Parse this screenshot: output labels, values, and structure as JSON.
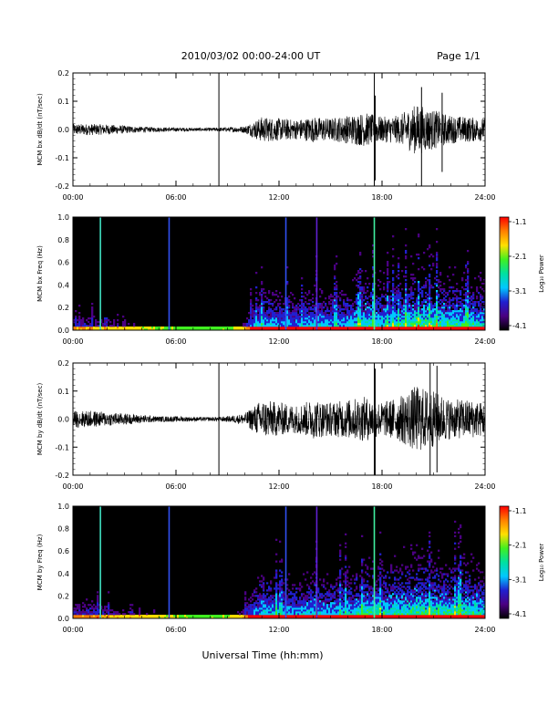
{
  "header": {
    "title": "2010/03/02  00:00-24:00 UT",
    "page": "Page 1/1"
  },
  "footer": {
    "xlabel": "Universal Time (hh:mm)"
  },
  "colorbar": {
    "label": "Log₁₀ Power",
    "ticks": [
      "-1.1",
      "-2.1",
      "-3.1",
      "-4.1"
    ],
    "stops": [
      "#000000",
      "#4b0082",
      "#2020d0",
      "#00c8ff",
      "#00e0a0",
      "#40f020",
      "#ffe000",
      "#ff8000",
      "#ff0000"
    ]
  },
  "chart_data": [
    {
      "type": "line",
      "title": "",
      "ylabel": "MCM bx dB/dt (nT/sec)",
      "xlabel": "",
      "xlim": [
        0,
        24
      ],
      "ylim": [
        -0.2,
        0.2
      ],
      "xticks": [
        "00:00",
        "06:00",
        "12:00",
        "18:00",
        "24:00"
      ],
      "yticks": [
        "0.2",
        "0.1",
        "0.0",
        "-0.1",
        "-0.2"
      ],
      "markers_h": [
        8.5,
        17.55
      ],
      "envelope": {
        "hours": [
          0,
          1,
          2,
          3,
          4,
          5,
          6,
          7,
          8,
          9,
          10,
          11,
          12,
          13,
          14,
          15,
          16,
          17,
          18,
          19,
          20,
          21,
          22,
          23,
          24
        ],
        "amplitude": [
          0.02,
          0.02,
          0.018,
          0.014,
          0.01,
          0.008,
          0.007,
          0.006,
          0.006,
          0.008,
          0.012,
          0.045,
          0.04,
          0.035,
          0.045,
          0.04,
          0.05,
          0.06,
          0.045,
          0.05,
          0.09,
          0.07,
          0.05,
          0.045,
          0.04
        ]
      },
      "spikes": [
        {
          "t": 17.6,
          "lo": -0.18,
          "hi": 0.12
        },
        {
          "t": 20.3,
          "lo": -0.2,
          "hi": 0.15
        },
        {
          "t": 21.5,
          "lo": -0.15,
          "hi": 0.13
        }
      ]
    },
    {
      "type": "heatmap",
      "title": "",
      "ylabel": "MCM bx Freq (Hz)",
      "xlabel": "",
      "xlim": [
        0,
        24
      ],
      "ylim": [
        0.0,
        1.0
      ],
      "xticks": [
        "00:00",
        "06:00",
        "12:00",
        "18:00",
        "24:00"
      ],
      "yticks": [
        "1.0",
        "0.8",
        "0.6",
        "0.4",
        "0.2",
        "0.0"
      ],
      "zlim": [
        -4.1,
        -1.1
      ],
      "activity": {
        "hours": [
          0,
          1,
          2,
          3,
          4,
          5,
          6,
          7,
          8,
          9,
          10,
          11,
          12,
          13,
          14,
          15,
          16,
          17,
          18,
          19,
          20,
          21,
          22,
          23,
          24
        ],
        "level": [
          0.25,
          0.25,
          0.22,
          0.18,
          0.15,
          0.12,
          0.1,
          0.08,
          0.08,
          0.1,
          0.2,
          0.6,
          0.55,
          0.5,
          0.6,
          0.55,
          0.6,
          0.8,
          0.7,
          0.75,
          0.9,
          0.85,
          0.8,
          0.75,
          0.7
        ]
      },
      "vertical_lines": [
        {
          "t": 1.6,
          "color": "#40e0c0"
        },
        {
          "t": 5.6,
          "color": "#3050f0"
        },
        {
          "t": 12.4,
          "color": "#3050f0"
        },
        {
          "t": 14.2,
          "color": "#6020d0"
        },
        {
          "t": 17.55,
          "color": "#40f0a0"
        }
      ]
    },
    {
      "type": "line",
      "title": "",
      "ylabel": "MCM by dB/dt (nT/sec)",
      "xlabel": "",
      "xlim": [
        0,
        24
      ],
      "ylim": [
        -0.2,
        0.2
      ],
      "xticks": [
        "00:00",
        "06:00",
        "12:00",
        "18:00",
        "24:00"
      ],
      "yticks": [
        "0.2",
        "0.1",
        "0.0",
        "-0.1",
        "-0.2"
      ],
      "markers_h": [
        8.5,
        17.55
      ],
      "envelope": {
        "hours": [
          0,
          1,
          2,
          3,
          4,
          5,
          6,
          7,
          8,
          9,
          10,
          11,
          12,
          13,
          14,
          15,
          16,
          17,
          18,
          19,
          20,
          21,
          22,
          23,
          24
        ],
        "amplitude": [
          0.03,
          0.03,
          0.025,
          0.02,
          0.015,
          0.01,
          0.01,
          0.008,
          0.007,
          0.01,
          0.02,
          0.07,
          0.06,
          0.05,
          0.07,
          0.06,
          0.07,
          0.08,
          0.06,
          0.08,
          0.12,
          0.1,
          0.07,
          0.07,
          0.06
        ]
      },
      "spikes": [
        {
          "t": 17.6,
          "lo": -0.2,
          "hi": 0.18
        },
        {
          "t": 20.8,
          "lo": -0.2,
          "hi": 0.2
        },
        {
          "t": 21.2,
          "lo": -0.19,
          "hi": 0.19
        }
      ]
    },
    {
      "type": "heatmap",
      "title": "",
      "ylabel": "MCM by Freq (Hz)",
      "xlabel": "",
      "xlim": [
        0,
        24
      ],
      "ylim": [
        0.0,
        1.0
      ],
      "xticks": [
        "00:00",
        "06:00",
        "12:00",
        "18:00",
        "24:00"
      ],
      "yticks": [
        "1.0",
        "0.8",
        "0.6",
        "0.4",
        "0.2",
        "0.0"
      ],
      "zlim": [
        -4.1,
        -1.1
      ],
      "activity": {
        "hours": [
          0,
          1,
          2,
          3,
          4,
          5,
          6,
          7,
          8,
          9,
          10,
          11,
          12,
          13,
          14,
          15,
          16,
          17,
          18,
          19,
          20,
          21,
          22,
          23,
          24
        ],
        "level": [
          0.3,
          0.3,
          0.25,
          0.2,
          0.18,
          0.15,
          0.12,
          0.1,
          0.1,
          0.12,
          0.25,
          0.65,
          0.6,
          0.55,
          0.65,
          0.6,
          0.65,
          0.8,
          0.75,
          0.8,
          0.9,
          0.85,
          0.8,
          0.8,
          0.75
        ]
      },
      "vertical_lines": [
        {
          "t": 1.6,
          "color": "#40e0c0"
        },
        {
          "t": 5.6,
          "color": "#3050f0"
        },
        {
          "t": 12.4,
          "color": "#3050f0"
        },
        {
          "t": 14.2,
          "color": "#6020d0"
        },
        {
          "t": 17.55,
          "color": "#40f0a0"
        }
      ]
    }
  ]
}
